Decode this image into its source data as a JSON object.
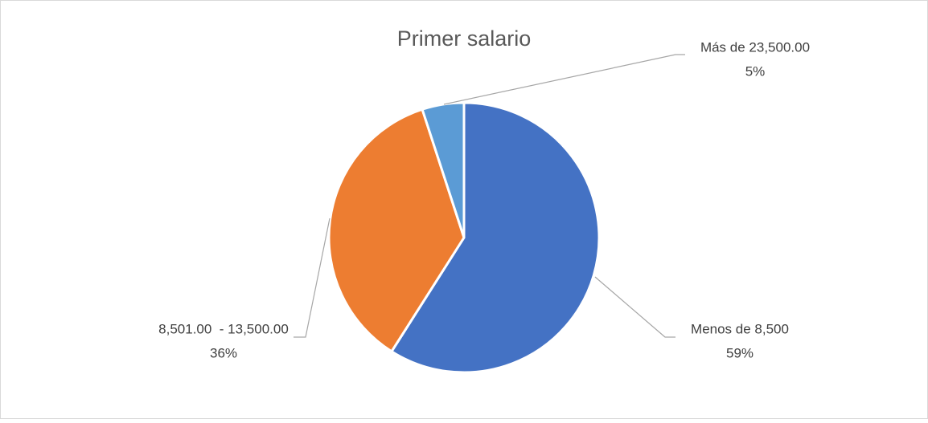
{
  "chart_data": {
    "type": "pie",
    "title": "Primer salario",
    "categories": [
      "Menos de 8,500",
      "8,501.00  - 13,500.00",
      "Más de 23,500.00"
    ],
    "values": [
      59,
      36,
      5
    ],
    "value_labels": [
      "59%",
      "36%",
      "5%"
    ],
    "colors": [
      "#4472c4",
      "#ed7d31",
      "#5b9bd5"
    ]
  }
}
